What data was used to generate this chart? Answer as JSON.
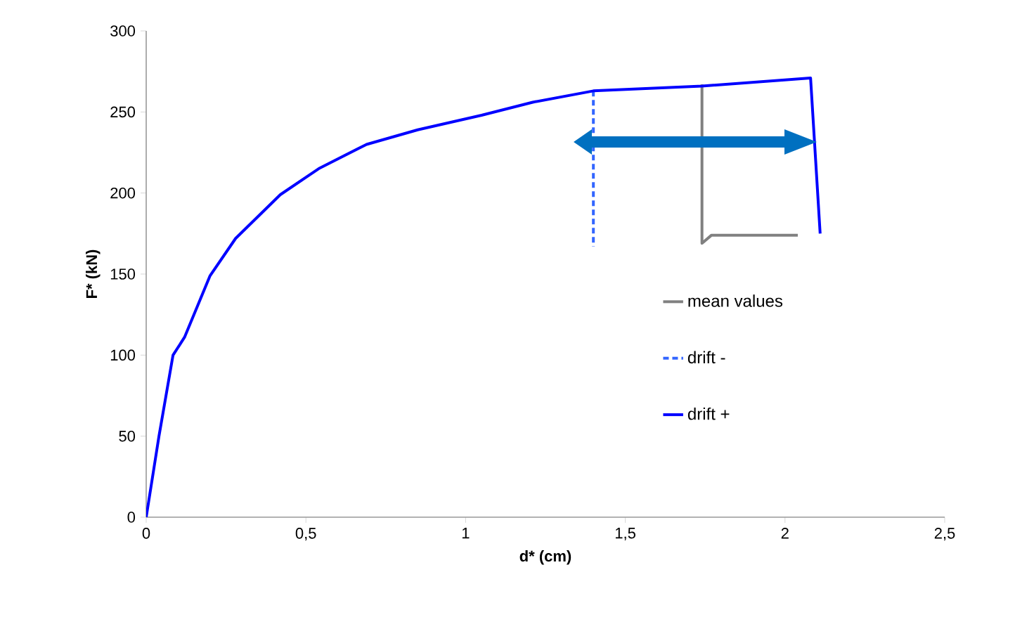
{
  "chart_data": {
    "type": "line",
    "xlabel": "d* (cm)",
    "ylabel": "F* (kN)",
    "xlim": [
      0,
      2.5
    ],
    "ylim": [
      0,
      300
    ],
    "xticks": [
      0,
      {
        "value": 0.5,
        "label": "0,5"
      },
      1,
      {
        "value": 1.5,
        "label": "1,5"
      },
      2,
      {
        "value": 2.5,
        "label": "2,5"
      }
    ],
    "yticks": [
      0,
      50,
      100,
      150,
      200,
      250,
      300
    ],
    "grid": false,
    "legend": "right",
    "marker": "none",
    "series": [
      {
        "name": "mean values",
        "color": "#808080",
        "line_style": "solid",
        "x": [
          1.74,
          1.74,
          1.77,
          1.85,
          1.95,
          2.04
        ],
        "values": [
          267,
          169,
          174,
          174,
          174,
          174
        ]
      },
      {
        "name": "drift -",
        "color": "#3366ff",
        "line_style": "dashed",
        "x": [
          1.4,
          1.4
        ],
        "values": [
          263,
          167
        ]
      },
      {
        "name": "drift +",
        "color": "#0000ff",
        "line_style": "solid",
        "x": [
          0,
          0.04,
          0.084,
          0.12,
          0.2,
          0.28,
          0.42,
          0.54,
          0.69,
          0.85,
          1.05,
          1.21,
          1.4,
          1.74,
          2.08,
          2.11
        ],
        "values": [
          0,
          50,
          100,
          111,
          149,
          172,
          199,
          215,
          230,
          239,
          248,
          256,
          263,
          266,
          271,
          175
        ]
      }
    ]
  }
}
